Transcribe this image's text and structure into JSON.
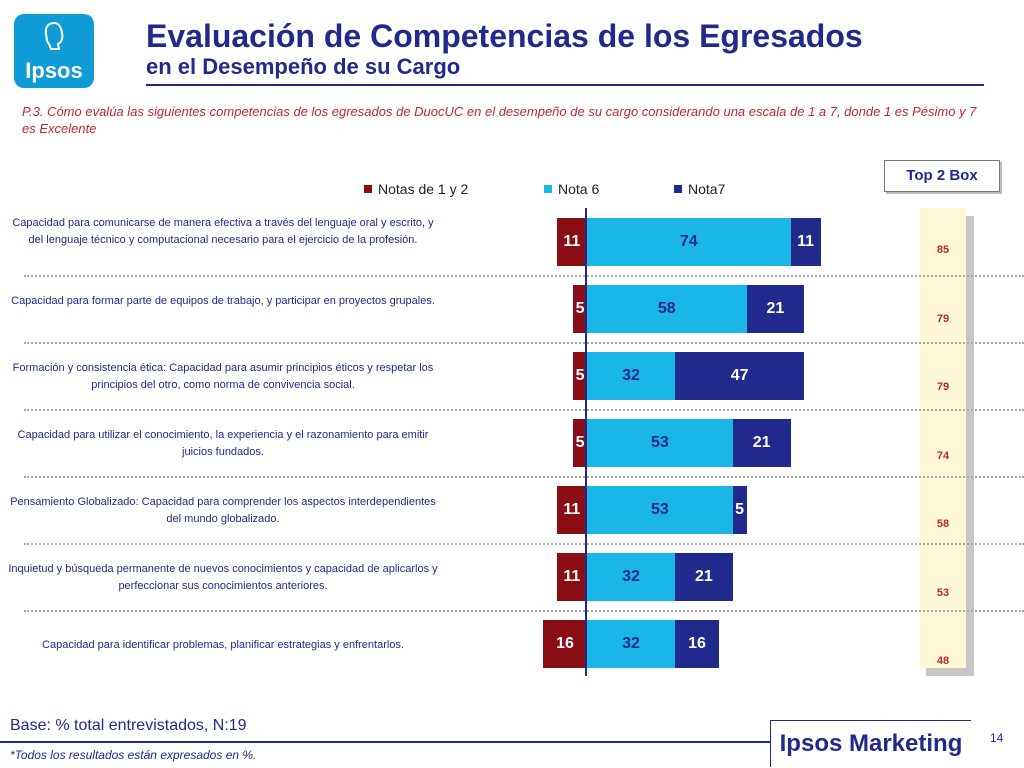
{
  "logo": {
    "text": "Ipsos"
  },
  "header": {
    "title": "Evaluación de Competencias de los Egresados",
    "subtitle": "en el Desempeño de su Cargo"
  },
  "question": "P.3. Cómo evalúa las siguientes competencias de los egresados de DuocUC en el desempeño de su cargo  considerando una escala de 1 a 7,  donde 1 es Pésimo y 7 es Excelente",
  "top2box": {
    "label": "Top 2 Box"
  },
  "colors": {
    "low": "#8a0d14",
    "nota6": "#1bb6e8",
    "nota7": "#1f2a8c"
  },
  "chart_data": {
    "type": "bar",
    "orientation": "horizontal-diverging",
    "legend": [
      "Notas de 1 y 2",
      "Nota 6",
      "Nota7"
    ],
    "categories": [
      "Capacidad para comunicarse de manera efectiva a través del lenguaje oral y escrito, y del lenguaje técnico y computacional necesario para el ejercicio de la profesión.",
      "Capacidad para formar parte de equipos de trabajo, y participar en proyectos grupales.",
      "Formación y consistencia ética: Capacidad para asumir principios éticos y respetar los principios del otro, como norma de convivencia social.",
      "Capacidad para utilizar el conocimiento, la experiencia y el razonamiento para emitir juicios fundados.",
      "Pensamiento Globalizado: Capacidad para comprender los aspectos interdependientes del mundo globalizado.",
      "Inquietud y búsqueda permanente de nuevos conocimientos y capacidad de aplicarlos y perfeccionar sus conocimientos anteriores.",
      "Capacidad para identificar problemas, planificar estrategias y enfrentarlos."
    ],
    "series": [
      {
        "name": "Notas de 1 y 2",
        "values": [
          11,
          5,
          5,
          5,
          11,
          11,
          16
        ]
      },
      {
        "name": "Nota 6",
        "values": [
          74,
          58,
          32,
          53,
          53,
          32,
          32
        ]
      },
      {
        "name": "Nota7",
        "values": [
          11,
          21,
          47,
          21,
          5,
          21,
          16
        ]
      }
    ],
    "top2box": [
      85,
      79,
      79,
      74,
      58,
      53,
      48
    ]
  },
  "footer": {
    "base": "Base: % total entrevistados, N:19",
    "note": "*Todos los resultados están expresados en %.",
    "brand": "Ipsos Marketing",
    "page": "14"
  }
}
